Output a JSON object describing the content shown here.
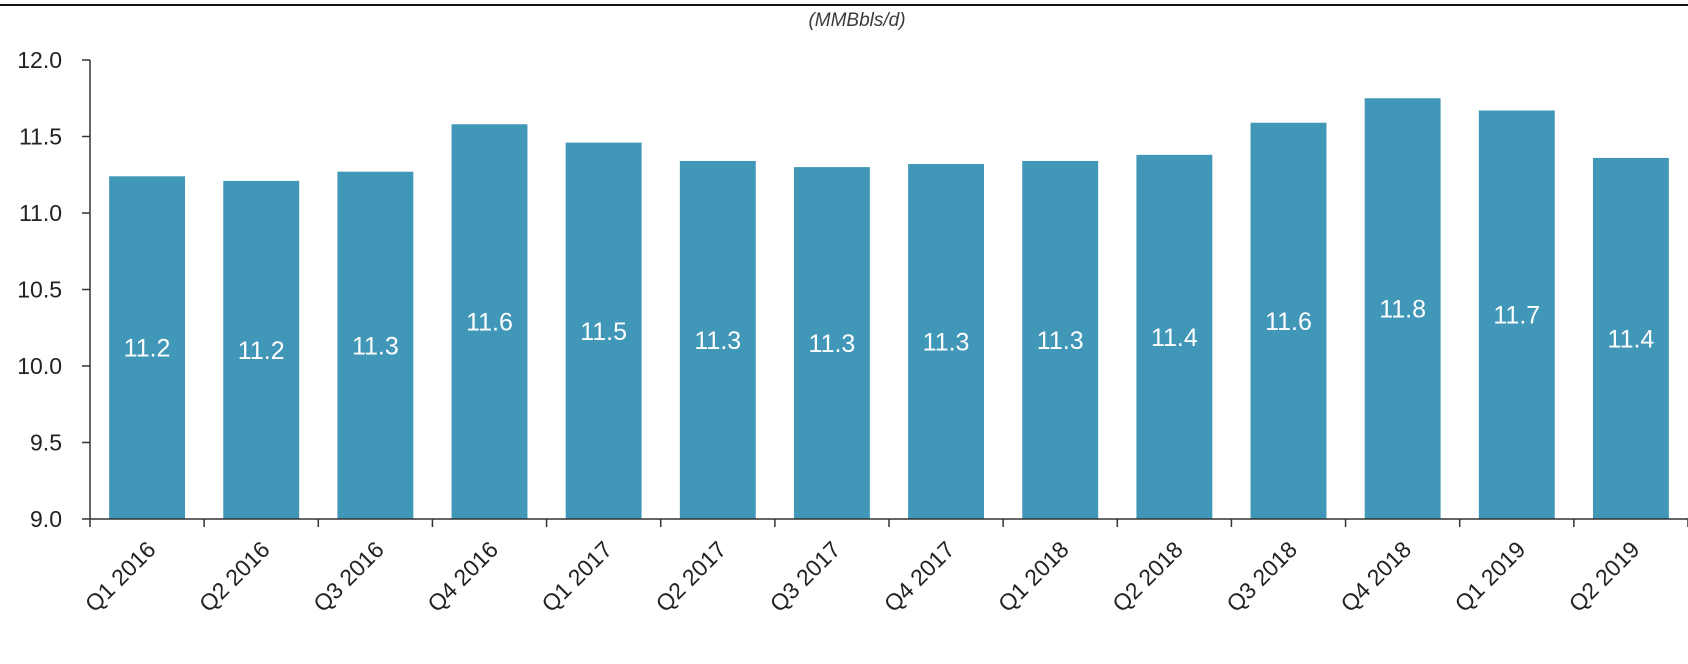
{
  "chart_data": {
    "type": "bar",
    "title": "",
    "unit_label": "(MMBbls/d)",
    "xlabel": "",
    "ylabel": "",
    "categories": [
      "Q1 2016",
      "Q2 2016",
      "Q3 2016",
      "Q4 2016",
      "Q1 2017",
      "Q2 2017",
      "Q3 2017",
      "Q4 2017",
      "Q1 2018",
      "Q2 2018",
      "Q3 2018",
      "Q4 2018",
      "Q1 2019",
      "Q2 2019"
    ],
    "values": [
      11.24,
      11.21,
      11.27,
      11.58,
      11.46,
      11.34,
      11.3,
      11.32,
      11.34,
      11.38,
      11.59,
      11.75,
      11.67,
      11.36
    ],
    "data_labels": [
      "11.2",
      "11.2",
      "11.3",
      "11.6",
      "11.5",
      "11.3",
      "11.3",
      "11.3",
      "11.3",
      "11.4",
      "11.6",
      "11.8",
      "11.7",
      "11.4"
    ],
    "ylim": [
      9.0,
      12.0
    ],
    "yticks": [
      "9.0",
      "9.5",
      "10.0",
      "10.5",
      "11.0",
      "11.5",
      "12.0"
    ],
    "grid": false,
    "legend": "none",
    "bar_color": "#4197b8",
    "label_color": "#ffffff"
  }
}
